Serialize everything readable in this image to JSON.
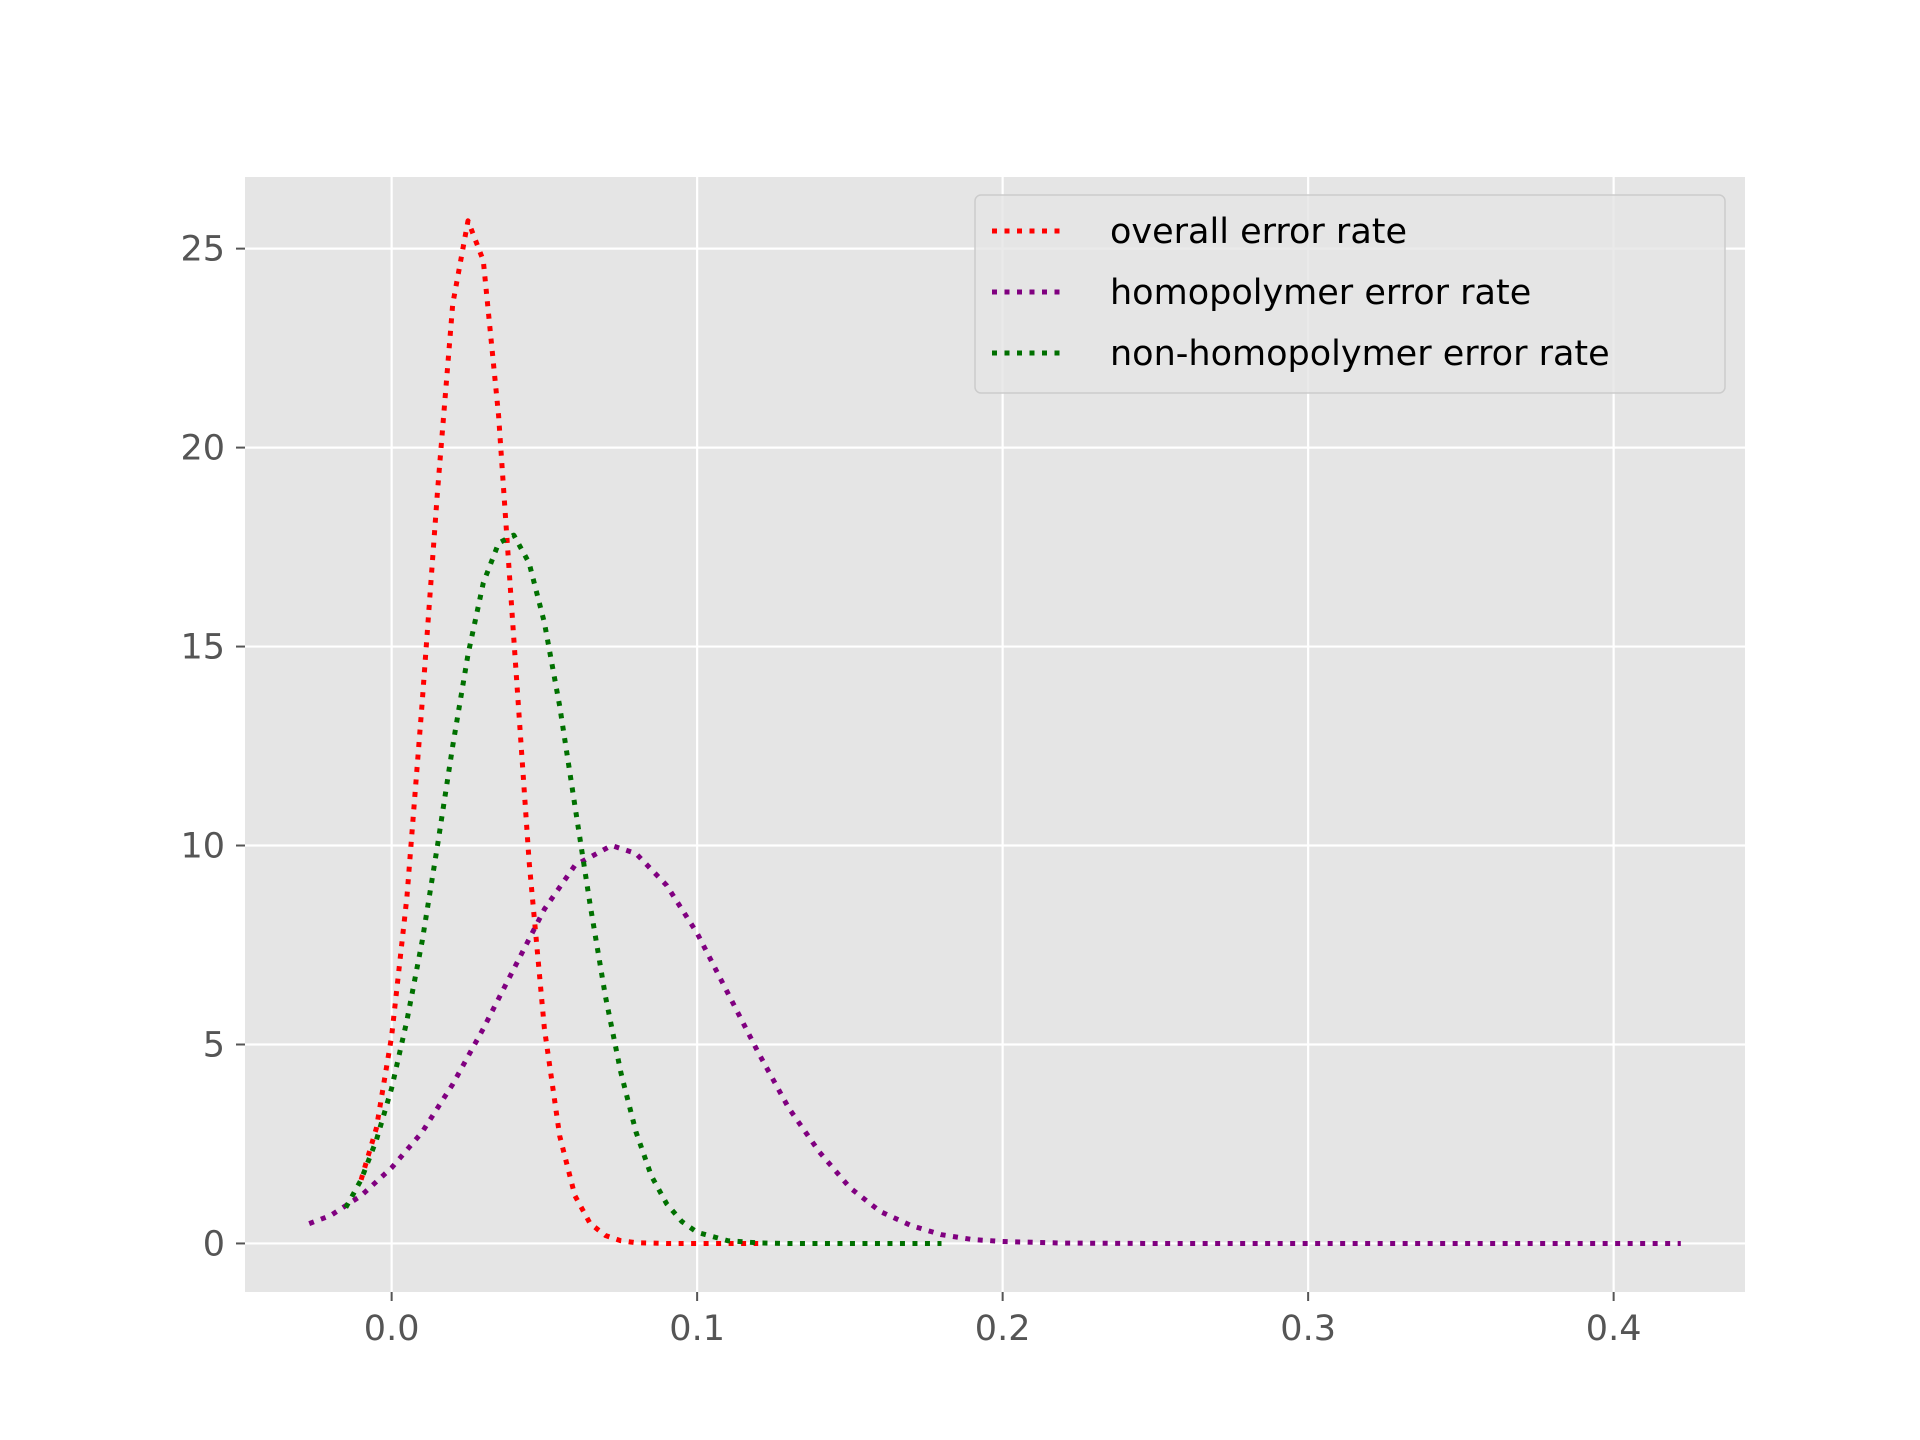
{
  "chart_data": {
    "type": "line",
    "title": "",
    "xlabel": "",
    "ylabel": "",
    "xlim": [
      -0.048,
      0.443
    ],
    "ylim": [
      -1.22,
      26.8
    ],
    "xticks": [
      0.0,
      0.1,
      0.2,
      0.3,
      0.4
    ],
    "xtick_labels": [
      "0.0",
      "0.1",
      "0.2",
      "0.3",
      "0.4"
    ],
    "yticks": [
      0,
      5,
      10,
      15,
      20,
      25
    ],
    "ytick_labels": [
      "0",
      "5",
      "10",
      "15",
      "20",
      "25"
    ],
    "grid": true,
    "legend_position": "top-right",
    "line_style": "dotted",
    "series": [
      {
        "name": "overall error rate",
        "color": "#ff0000",
        "x": [
          -0.01,
          -0.005,
          0.0,
          0.005,
          0.01,
          0.015,
          0.02,
          0.025,
          0.03,
          0.035,
          0.04,
          0.045,
          0.05,
          0.055,
          0.06,
          0.065,
          0.07,
          0.075,
          0.08,
          0.09,
          0.1,
          0.11,
          0.12
        ],
        "y": [
          1.6,
          2.9,
          5.2,
          8.7,
          13.6,
          18.9,
          23.6,
          25.7,
          24.7,
          20.8,
          15.2,
          9.6,
          5.4,
          2.7,
          1.2,
          0.5,
          0.2,
          0.07,
          0.02,
          0.0,
          0.0,
          0.0,
          0.0
        ]
      },
      {
        "name": "homopolymer error rate",
        "color": "#800080",
        "x": [
          -0.027,
          -0.02,
          -0.01,
          0.0,
          0.01,
          0.02,
          0.03,
          0.04,
          0.05,
          0.06,
          0.072,
          0.08,
          0.09,
          0.1,
          0.11,
          0.12,
          0.13,
          0.14,
          0.15,
          0.16,
          0.17,
          0.18,
          0.19,
          0.2,
          0.22,
          0.25,
          0.3,
          0.35,
          0.4,
          0.422
        ],
        "y": [
          0.5,
          0.7,
          1.2,
          1.9,
          2.8,
          4.0,
          5.4,
          6.9,
          8.4,
          9.5,
          10.0,
          9.8,
          9.0,
          7.8,
          6.3,
          4.8,
          3.4,
          2.3,
          1.4,
          0.8,
          0.45,
          0.22,
          0.1,
          0.05,
          0.01,
          0.0,
          0.0,
          0.0,
          0.0,
          0.0
        ]
      },
      {
        "name": "non-homopolymer error rate",
        "color": "#007000",
        "x": [
          -0.015,
          -0.01,
          -0.005,
          0.0,
          0.005,
          0.01,
          0.015,
          0.02,
          0.025,
          0.03,
          0.035,
          0.04,
          0.045,
          0.05,
          0.055,
          0.06,
          0.065,
          0.07,
          0.075,
          0.08,
          0.085,
          0.09,
          0.095,
          0.1,
          0.11,
          0.12,
          0.13,
          0.14,
          0.16,
          0.18
        ],
        "y": [
          0.9,
          1.6,
          2.6,
          3.9,
          5.6,
          7.6,
          10.0,
          12.5,
          14.8,
          16.6,
          17.6,
          17.8,
          17.1,
          15.6,
          13.5,
          11.0,
          8.5,
          6.2,
          4.3,
          2.8,
          1.7,
          1.0,
          0.55,
          0.28,
          0.07,
          0.015,
          0.0,
          0.0,
          0.0,
          0.0
        ]
      }
    ]
  }
}
